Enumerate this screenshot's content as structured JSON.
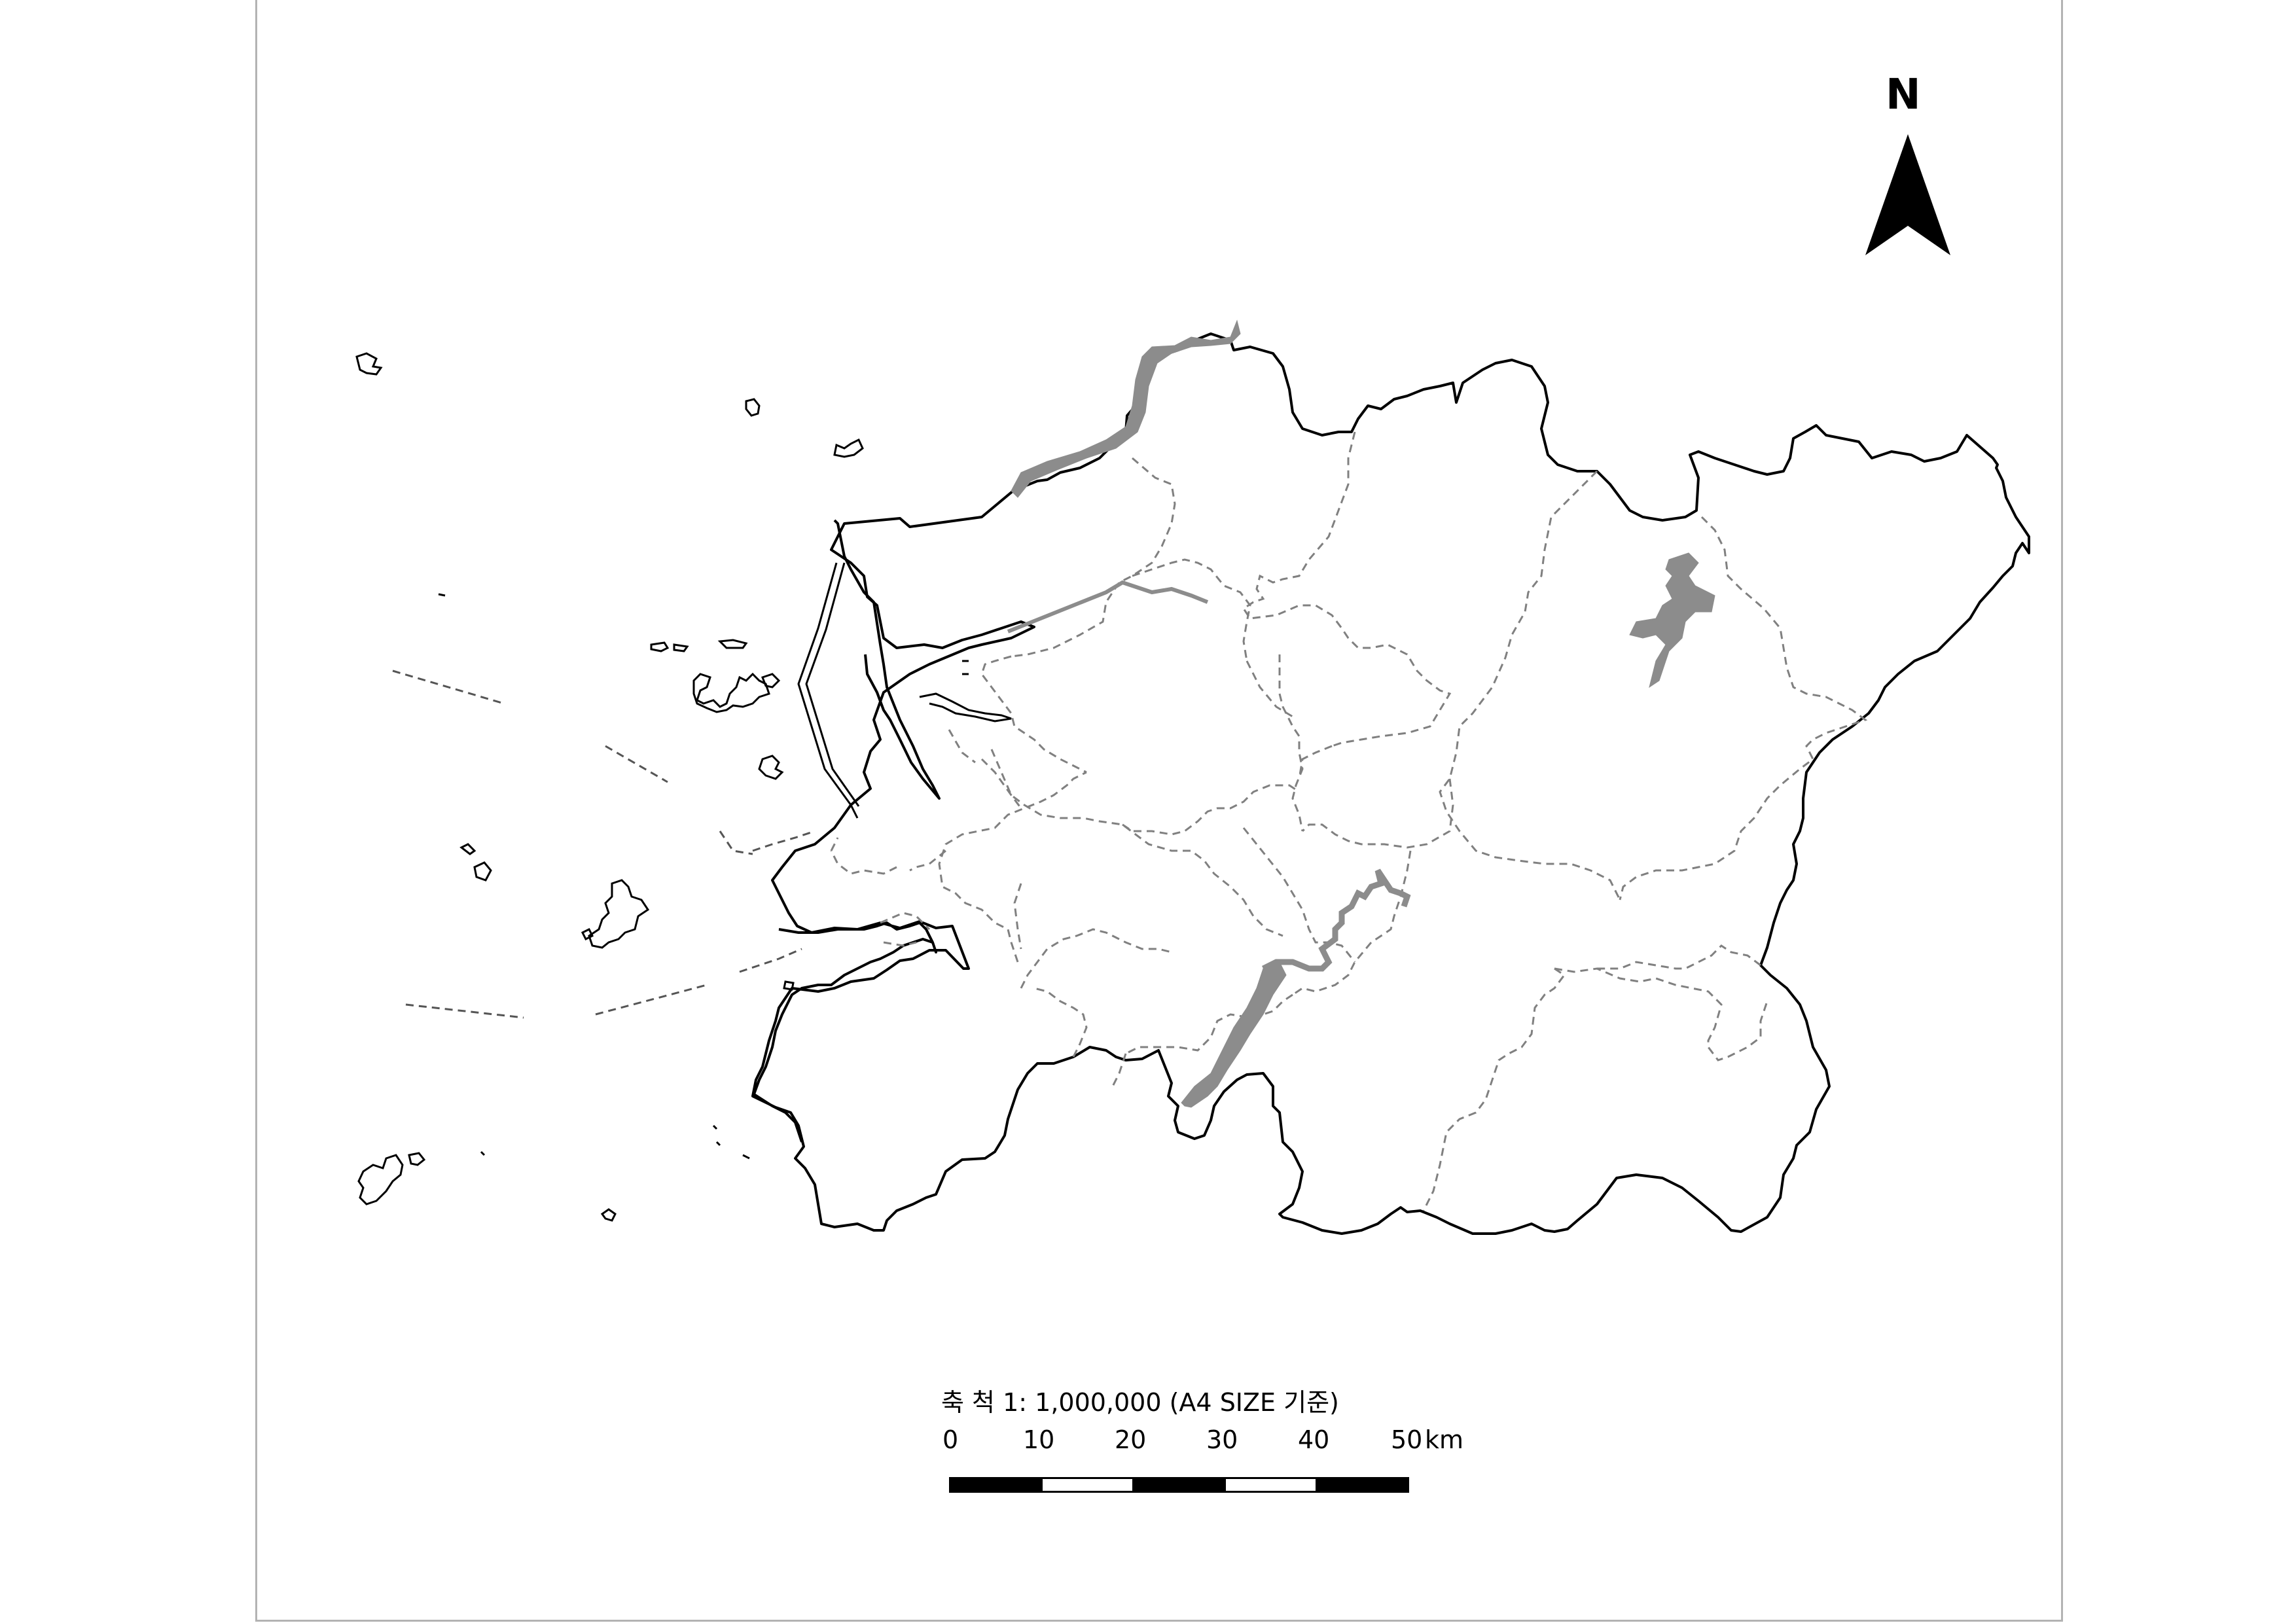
{
  "map": {
    "north_label": "N",
    "scale_title": "축 척 1: 1,000,000 (A4 SIZE 기준)",
    "scale_ticks": [
      "0",
      "10",
      "20",
      "30",
      "40",
      "50"
    ],
    "scale_unit": "km",
    "colors": {
      "boundary": "#000000",
      "district_line": "#808080",
      "water": "#8c8c8c",
      "frame": "#b3b3b3"
    }
  }
}
